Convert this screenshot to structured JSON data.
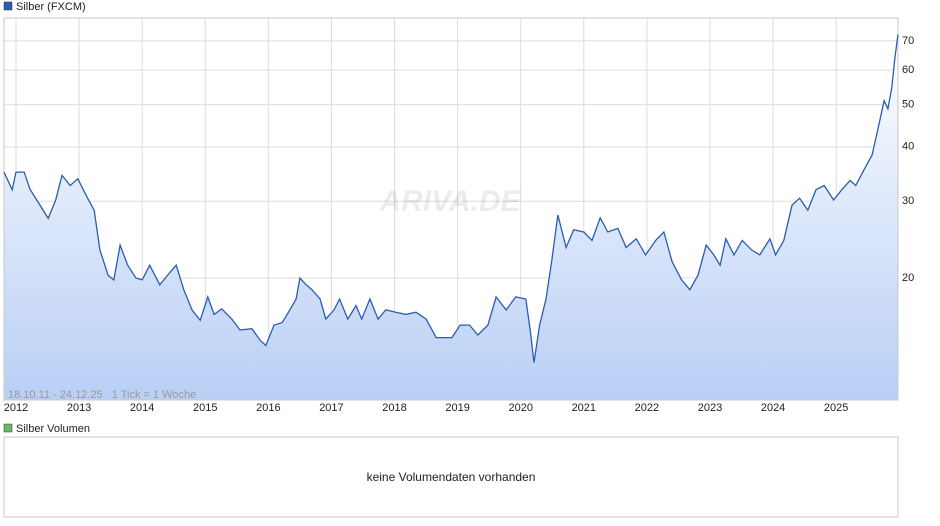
{
  "chart_data": {
    "type": "line",
    "subtitle": "18.10.11 - 24.12.25   1 Tick = 1 Woche",
    "watermark": "ARIVA.DE",
    "x": [
      2011.81,
      2011.94,
      2012.0,
      2012.13,
      2012.22,
      2012.38,
      2012.51,
      2012.63,
      2012.73,
      2012.86,
      2012.98,
      2013.11,
      2013.24,
      2013.33,
      2013.46,
      2013.55,
      2013.65,
      2013.77,
      2013.9,
      2014.0,
      2014.12,
      2014.28,
      2014.44,
      2014.54,
      2014.66,
      2014.79,
      2014.92,
      2015.04,
      2015.14,
      2015.26,
      2015.42,
      2015.55,
      2015.74,
      2015.87,
      2015.96,
      2016.09,
      2016.22,
      2016.34,
      2016.44,
      2016.5,
      2016.6,
      2016.69,
      2016.82,
      2016.91,
      2017.04,
      2017.13,
      2017.26,
      2017.39,
      2017.48,
      2017.61,
      2017.74,
      2017.86,
      2018.02,
      2018.18,
      2018.34,
      2018.5,
      2018.66,
      2018.78,
      2018.91,
      2019.04,
      2019.19,
      2019.32,
      2019.48,
      2019.61,
      2019.77,
      2019.92,
      2020.08,
      2020.15,
      2020.21,
      2020.3,
      2020.4,
      2020.49,
      2020.59,
      2020.72,
      2020.84,
      2021.0,
      2021.13,
      2021.26,
      2021.38,
      2021.54,
      2021.67,
      2021.83,
      2021.98,
      2022.14,
      2022.27,
      2022.4,
      2022.55,
      2022.68,
      2022.81,
      2022.94,
      2023.06,
      2023.16,
      2023.25,
      2023.38,
      2023.51,
      2023.66,
      2023.79,
      2023.95,
      2024.04,
      2024.17,
      2024.3,
      2024.42,
      2024.55,
      2024.68,
      2024.81,
      2024.96,
      2025.09,
      2025.22,
      2025.31,
      2025.44,
      2025.57,
      2025.66,
      2025.76,
      2025.82,
      2025.88,
      2025.93,
      2025.98
    ],
    "series": [
      {
        "name": "Silber (FXCM)",
        "color": "#2a5db0",
        "values": [
          35.0,
          31.9,
          35.0,
          35.0,
          32.0,
          29.4,
          27.4,
          30.2,
          34.4,
          32.6,
          33.8,
          31.0,
          28.6,
          23.2,
          20.3,
          19.8,
          23.8,
          21.4,
          20.0,
          19.8,
          21.4,
          19.3,
          20.6,
          21.4,
          18.8,
          16.9,
          16.0,
          18.1,
          16.5,
          17.0,
          16.1,
          15.2,
          15.3,
          14.4,
          14.0,
          15.6,
          15.8,
          16.9,
          17.9,
          20.0,
          19.3,
          18.8,
          17.9,
          16.1,
          16.9,
          17.9,
          16.1,
          17.3,
          16.1,
          17.9,
          16.1,
          16.9,
          16.7,
          16.5,
          16.7,
          16.1,
          14.6,
          14.6,
          14.6,
          15.6,
          15.6,
          14.8,
          15.6,
          18.1,
          16.9,
          18.1,
          17.9,
          15.2,
          12.8,
          15.6,
          17.9,
          21.8,
          27.9,
          23.5,
          25.8,
          25.5,
          24.4,
          27.5,
          25.5,
          26.0,
          23.5,
          24.6,
          22.6,
          24.4,
          25.5,
          21.8,
          19.8,
          18.8,
          20.3,
          23.8,
          22.6,
          21.4,
          24.6,
          22.6,
          24.4,
          23.2,
          22.6,
          24.6,
          22.6,
          24.4,
          29.4,
          30.5,
          28.6,
          31.9,
          32.6,
          30.2,
          31.9,
          33.5,
          32.6,
          35.4,
          38.3,
          43.8,
          51.0,
          48.9,
          54.5,
          63.7,
          72.4
        ]
      }
    ],
    "xlim": [
      2011.81,
      2025.98
    ],
    "xticks": [
      2012,
      2013,
      2014,
      2015,
      2016,
      2017,
      2018,
      2019,
      2020,
      2021,
      2022,
      2023,
      2024,
      2025
    ],
    "ylim": [
      10.5,
      79
    ],
    "yticks": [
      20,
      30,
      40,
      50,
      60,
      70
    ],
    "log_y": true,
    "grid": true
  },
  "volume_panel": {
    "title": "Silber Volumen",
    "color": "#66bb66",
    "message": "keine Volumendaten vorhanden"
  }
}
